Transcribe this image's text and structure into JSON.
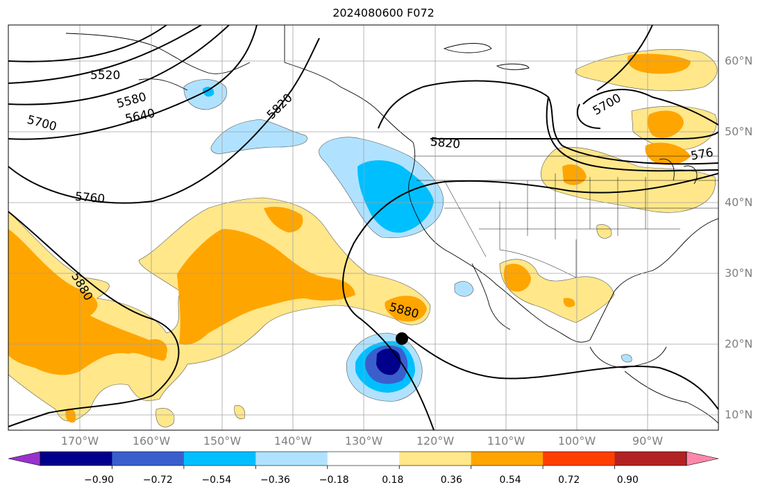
{
  "title": "2024080600 F072",
  "lat_labels": [
    "60°N",
    "50°N",
    "40°N",
    "30°N",
    "20°N",
    "10°N"
  ],
  "lon_labels": [
    "170°W",
    "160°W",
    "150°W",
    "140°W",
    "130°W",
    "120°W",
    "110°W",
    "100°W",
    "90°W"
  ],
  "contour_labels": [
    "5520",
    "5580",
    "5640",
    "5700",
    "5760",
    "5820",
    "5820",
    "5880",
    "5880",
    "5700",
    "576"
  ],
  "colorbar": {
    "ticks": [
      "−0.90",
      "−0.72",
      "−0.54",
      "−0.36",
      "−0.18",
      "0.18",
      "0.36",
      "0.54",
      "0.72",
      "0.90"
    ],
    "colors": [
      "#9932cc",
      "#00008b",
      "#3a5fcd",
      "#00bfff",
      "#b0e2ff",
      "#ffffff",
      "#ffe78a",
      "#ffa500",
      "#ff3f00",
      "#b22222",
      "#ff88aa"
    ]
  },
  "marker": {
    "name": "storm-center"
  }
}
